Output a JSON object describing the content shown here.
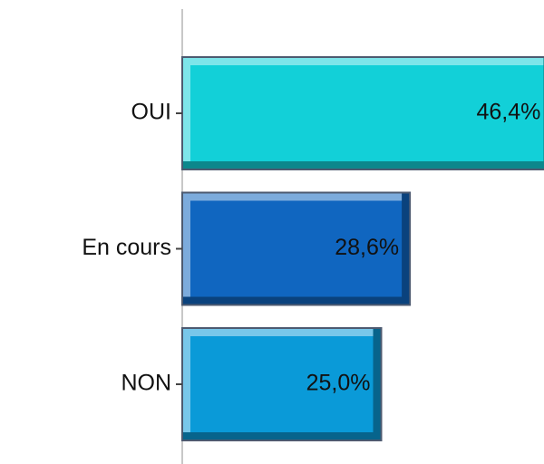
{
  "chart_data": {
    "type": "barh",
    "categories": [
      "OUI",
      "En cours",
      "NON"
    ],
    "values": [
      46.4,
      28.6,
      25.0
    ],
    "value_labels": [
      "46,4%",
      "28,6%",
      "25,0%"
    ],
    "colors": [
      "#12d0d8",
      "#1066c0",
      "#0a9ad8"
    ]
  }
}
